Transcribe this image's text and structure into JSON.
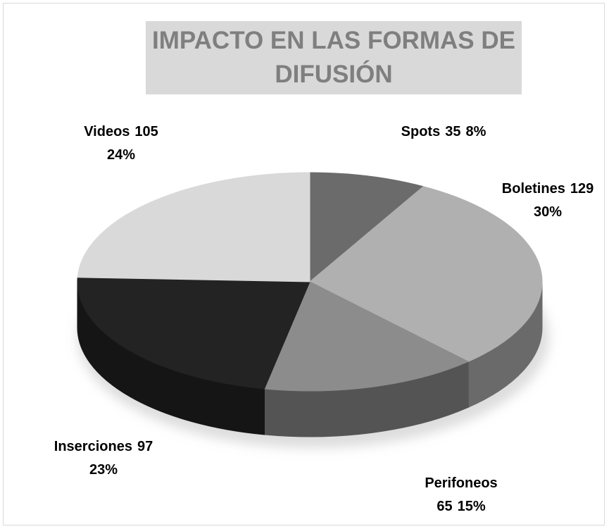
{
  "chart_data": {
    "type": "pie",
    "title": "IMPACTO EN LAS FORMAS DE DIFUSIÓN",
    "categories": [
      "Spots",
      "Boletines",
      "Perifoneos",
      "Inserciones",
      "Videos"
    ],
    "values": [
      35,
      129,
      65,
      97,
      105
    ],
    "percent_labels": [
      "8%",
      "30%",
      "15%",
      "23%",
      "24%"
    ],
    "colors": [
      "#6b6b6b",
      "#b0b0b0",
      "#8c8c8c",
      "#232323",
      "#d9d9d9"
    ]
  }
}
